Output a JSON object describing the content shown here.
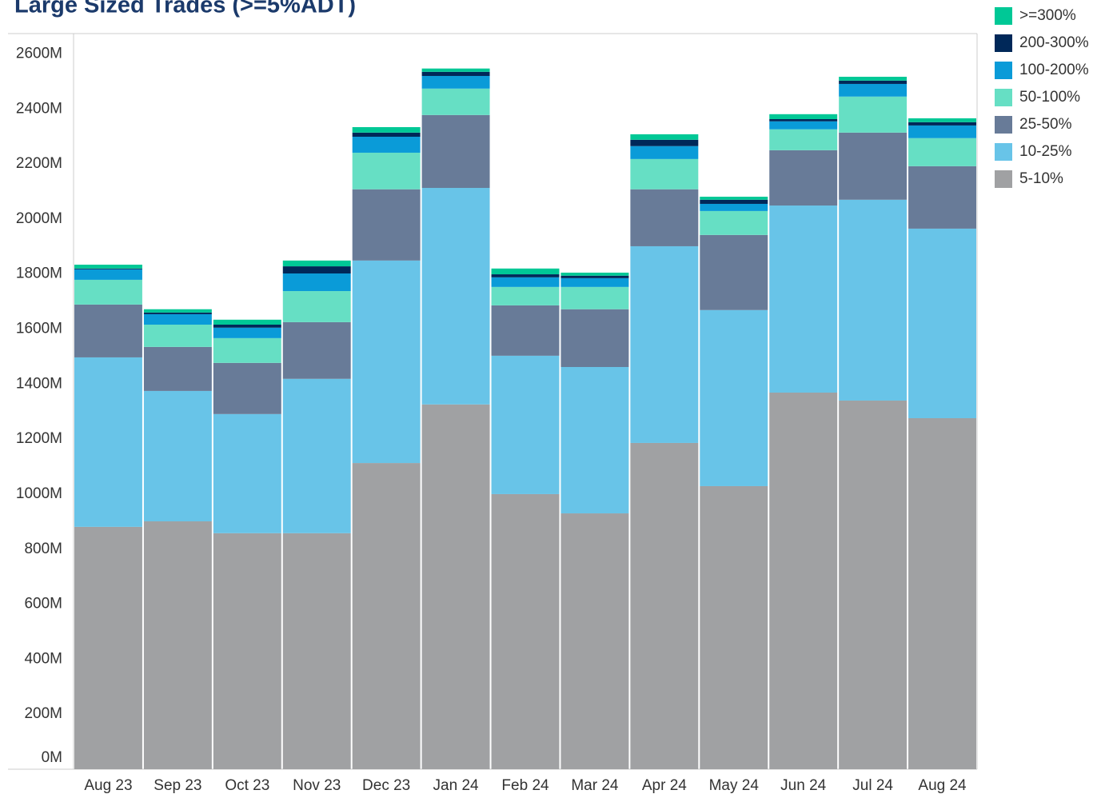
{
  "chart_data": {
    "type": "stacked_bar",
    "title": "Large Sized Trades (>=5%ADT)",
    "categories": [
      "Aug 23",
      "Sep 23",
      "Oct 23",
      "Nov 23",
      "Dec 23",
      "Jan 24",
      "Feb 24",
      "Mar 24",
      "Apr 24",
      "May 24",
      "Jun 24",
      "Jul 24",
      "Aug 24"
    ],
    "series": [
      {
        "name": "5-10%",
        "color": "#a0a1a3",
        "values": [
          881,
          901,
          858,
          858,
          1113,
          1326,
          1000,
          930,
          1186,
          1029,
          1369,
          1340,
          1276
        ]
      },
      {
        "name": "10-25%",
        "color": "#68c4e8",
        "values": [
          616,
          474,
          433,
          561,
          736,
          787,
          503,
          532,
          715,
          640,
          680,
          730,
          689
        ]
      },
      {
        "name": "25-50%",
        "color": "#687b98",
        "values": [
          192,
          160,
          186,
          206,
          259,
          265,
          183,
          210,
          207,
          273,
          201,
          244,
          227
        ]
      },
      {
        "name": "50-100%",
        "color": "#66dfc4",
        "values": [
          90,
          81,
          90,
          113,
          133,
          96,
          67,
          81,
          110,
          87,
          76,
          131,
          102
        ]
      },
      {
        "name": "100-200%",
        "color": "#0a9bd8",
        "values": [
          38,
          38,
          38,
          64,
          58,
          46,
          35,
          32,
          47,
          26,
          29,
          46,
          46
        ]
      },
      {
        "name": "200-300%",
        "color": "#002859",
        "values": [
          3,
          6,
          11,
          26,
          15,
          15,
          11,
          9,
          23,
          15,
          8,
          12,
          12
        ]
      },
      {
        "name": ">=300%",
        "color": "#00c896",
        "values": [
          14,
          12,
          18,
          21,
          20,
          12,
          21,
          11,
          20,
          11,
          18,
          14,
          14
        ]
      }
    ],
    "ylim": [
      0,
      2674
    ],
    "yticks": [
      {
        "value": 0,
        "label": "0M"
      },
      {
        "value": 200,
        "label": "200M"
      },
      {
        "value": 400,
        "label": "400M"
      },
      {
        "value": 600,
        "label": "600M"
      },
      {
        "value": 800,
        "label": "800M"
      },
      {
        "value": 1000,
        "label": "1000M"
      },
      {
        "value": 1200,
        "label": "1200M"
      },
      {
        "value": 1400,
        "label": "1400M"
      },
      {
        "value": 1600,
        "label": "1600M"
      },
      {
        "value": 1800,
        "label": "1800M"
      },
      {
        "value": 2000,
        "label": "2000M"
      },
      {
        "value": 2200,
        "label": "2200M"
      },
      {
        "value": 2400,
        "label": "2400M"
      },
      {
        "value": 2600,
        "label": "2600M"
      }
    ]
  }
}
